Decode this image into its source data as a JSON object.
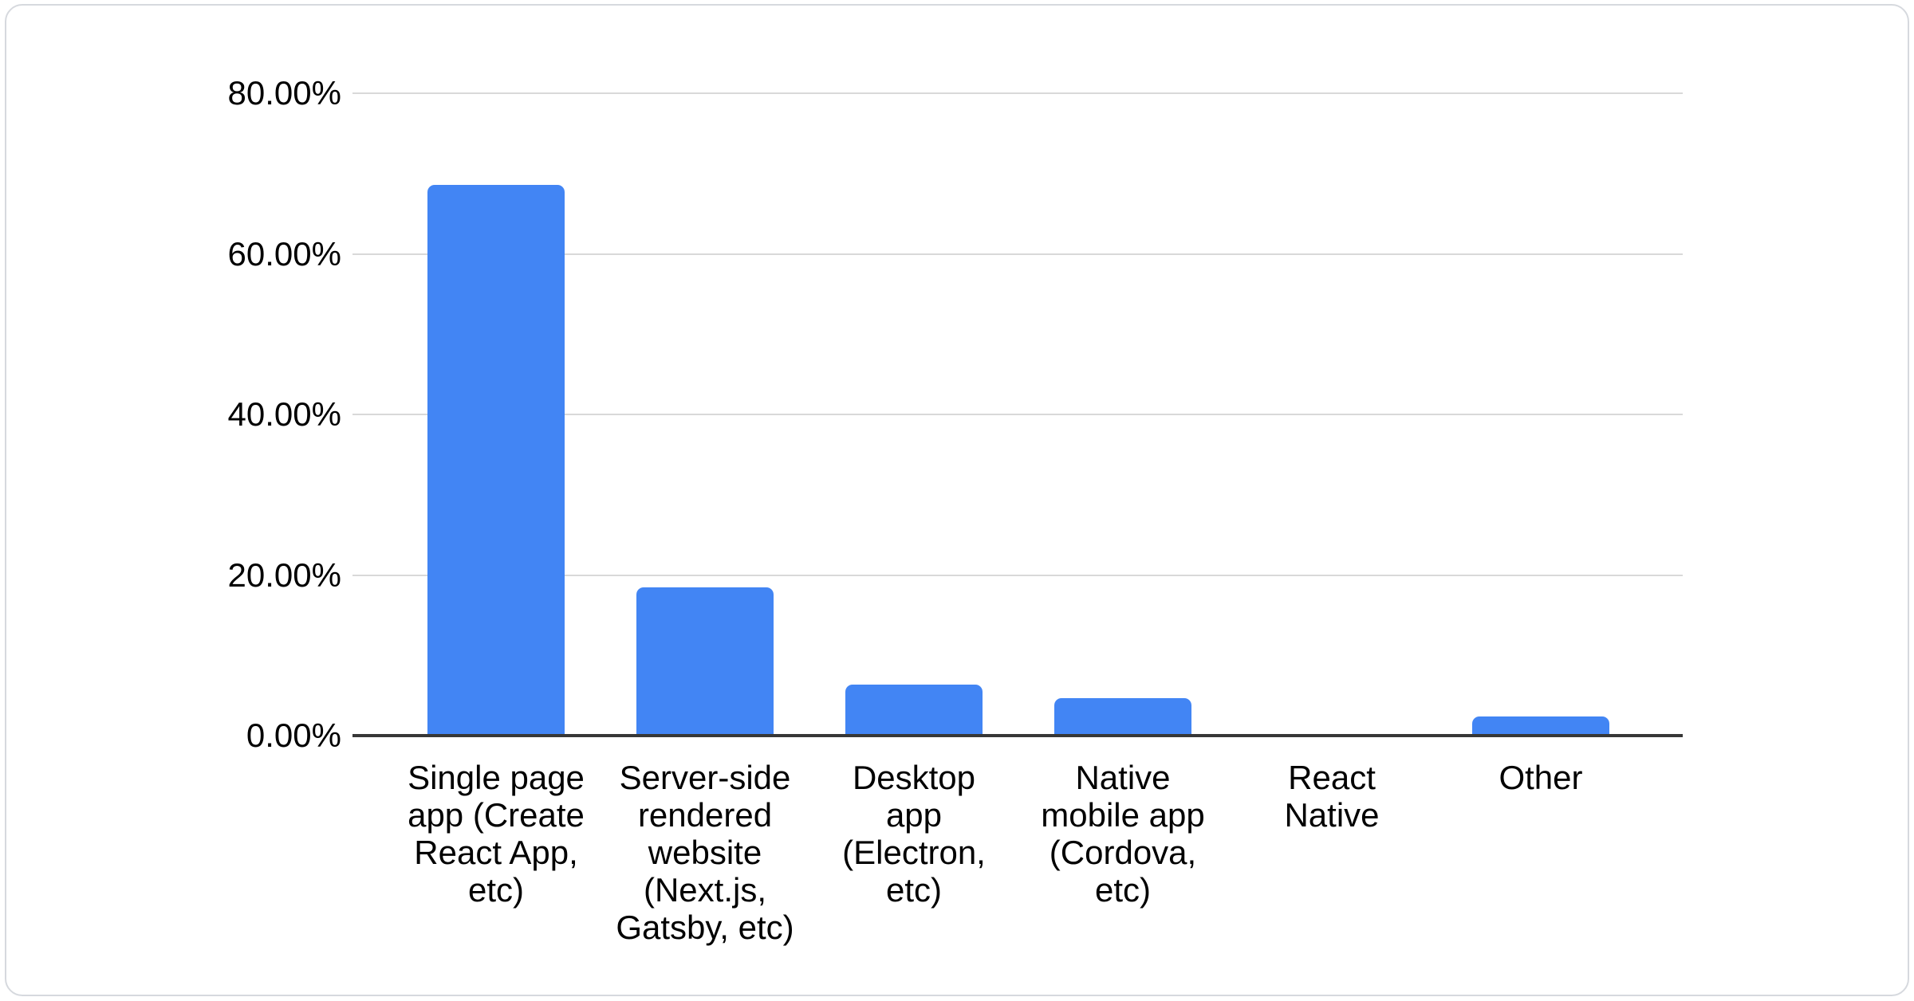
{
  "page": {
    "background_color": "#ffffff",
    "card_border_color": "#d6d9de",
    "card_background_color": "#ffffff"
  },
  "chart_data": {
    "type": "bar",
    "title": "",
    "xlabel": "",
    "ylabel": "",
    "categories": [
      "Single page app (Create React App, etc)",
      "Server-side rendered website (Next.js, Gatsby, etc)",
      "Desktop app (Electron, etc)",
      "Native mobile app (Cordova, etc)",
      "React Native",
      "Other"
    ],
    "category_labels_wrapped": [
      "Single page\napp (Create\nReact App,\netc)",
      "Server-side\nrendered\nwebsite\n(Next.js,\nGatsby, etc)",
      "Desktop\napp\n(Electron,\netc)",
      "Native\nmobile app\n(Cordova,\netc)",
      "React\nNative",
      "Other"
    ],
    "values": [
      68.6,
      18.5,
      6.4,
      4.7,
      0,
      2.4
    ],
    "value_unit": "%",
    "ylim": [
      0,
      80
    ],
    "yticks": [
      {
        "value": 80,
        "label": "80.00%"
      },
      {
        "value": 60,
        "label": "60.00%"
      },
      {
        "value": 40,
        "label": "40.00%"
      },
      {
        "value": 20,
        "label": "20.00%"
      },
      {
        "value": 0,
        "label": "0.00%"
      }
    ],
    "grid": true,
    "legend_position": "none",
    "bar_color": "#4285f4",
    "gridline_color": "#d9d9d9",
    "axis_line_color": "#373737",
    "label_color": "#000000"
  }
}
